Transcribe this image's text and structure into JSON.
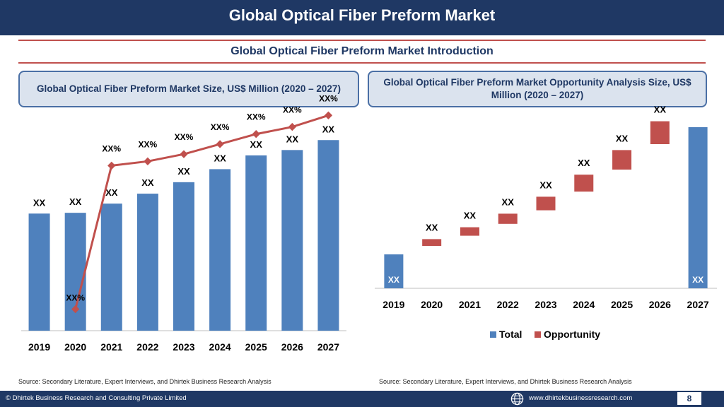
{
  "header": {
    "title": "Global Optical Fiber Preform Market"
  },
  "subtitle": "Global Optical Fiber Preform Market  Introduction",
  "left_panel": {
    "title": "Global Optical Fiber Preform Market  Size, US$ Million (2020 – 2027)",
    "source": "Source: Secondary Literature, Expert Interviews, and Dhirtek Business Research Analysis"
  },
  "right_panel": {
    "title": "Global Optical Fiber Preform Market  Opportunity Analysis Size, US$ Million (2020 – 2027)",
    "source": "Source: Secondary Literature, Expert Interviews, and Dhirtek Business Research Analysis"
  },
  "footer": {
    "copyright": "© Dhirtek Business Research and Consulting Private Limited",
    "website": "www.dhirtekbusinessresearch.com",
    "page": "8"
  },
  "colors": {
    "bar": "#4f81bd",
    "line": "#c0504d",
    "opportunity": "#c0504d",
    "header": "#1f3864"
  },
  "chart_data": [
    {
      "type": "bar",
      "categories": [
        "2019",
        "2020",
        "2021",
        "2022",
        "2023",
        "2024",
        "2025",
        "2026",
        "2027"
      ],
      "values": [
        153,
        154,
        166,
        179,
        194,
        211,
        229,
        236,
        249
      ],
      "bar_labels": [
        "XX",
        "XX",
        "XX",
        "XX",
        "XX",
        "XX",
        "XX",
        "XX",
        "XX"
      ],
      "ylim": [
        0,
        300
      ],
      "line_series": {
        "values": [
          null,
          -5,
          95,
          98,
          103,
          110,
          117,
          122,
          130
        ],
        "labels": [
          "",
          "XX%",
          "XX%",
          "XX%",
          "XX%",
          "XX%",
          "XX%",
          "XX%",
          "XX%"
        ],
        "ylim": [
          -20,
          140
        ]
      }
    },
    {
      "type": "bar",
      "categories": [
        "2019",
        "2020",
        "2021",
        "2022",
        "2023",
        "2024",
        "2025",
        "2026",
        "2027"
      ],
      "series": [
        {
          "name": "Total",
          "values": [
            40,
            null,
            null,
            null,
            null,
            null,
            null,
            null,
            190
          ]
        },
        {
          "name": "Opportunity",
          "ranges": [
            null,
            [
              50,
              58
            ],
            [
              62,
              72
            ],
            [
              76,
              88
            ],
            [
              92,
              108
            ],
            [
              114,
              134
            ],
            [
              140,
              163
            ],
            [
              170,
              197
            ],
            null
          ]
        }
      ],
      "bar_labels": [
        "XX",
        "XX",
        "XX",
        "XX",
        "XX",
        "XX",
        "XX",
        "XX",
        "XX"
      ],
      "ylim": [
        0,
        200
      ],
      "legend": "bottom"
    }
  ]
}
